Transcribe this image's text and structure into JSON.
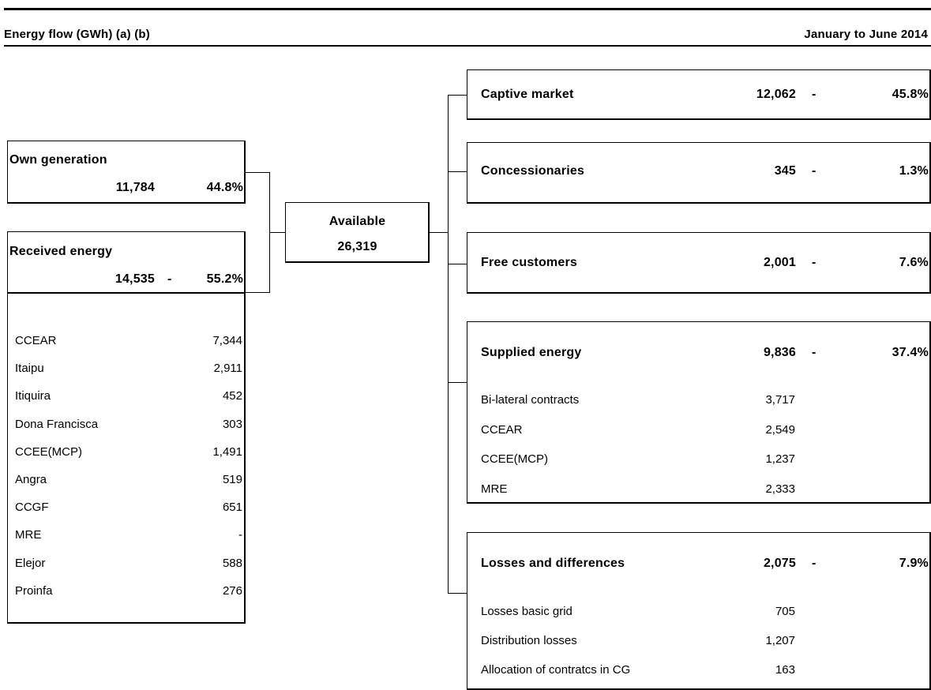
{
  "header": {
    "title": "Energy flow (GWh) (a) (b)",
    "period": "January to June 2014"
  },
  "own_generation": {
    "label": "Own generation",
    "value": "11,784",
    "pct": "44.8%"
  },
  "received_energy": {
    "label": "Received energy",
    "value": "14,535",
    "dash": "-",
    "pct": "55.2%",
    "items": [
      {
        "name": "CCEAR",
        "value": "7,344"
      },
      {
        "name": "Itaipu",
        "value": "2,911"
      },
      {
        "name": "Itiquira",
        "value": "452"
      },
      {
        "name": "Dona Francisca",
        "value": "303"
      },
      {
        "name": "CCEE(MCP)",
        "value": "1,491"
      },
      {
        "name": "Angra",
        "value": "519"
      },
      {
        "name": "CCGF",
        "value": "651"
      },
      {
        "name": "MRE",
        "value": "-"
      },
      {
        "name": "Elejor",
        "value": "588"
      },
      {
        "name": "Proinfa",
        "value": "276"
      }
    ]
  },
  "available": {
    "label": "Available",
    "value": "26,319"
  },
  "captive_market": {
    "label": "Captive market",
    "value": "12,062",
    "dash": "-",
    "pct": "45.8%"
  },
  "concessionaries": {
    "label": "Concessionaries",
    "value": "345",
    "dash": "-",
    "pct": "1.3%"
  },
  "free_customers": {
    "label": "Free customers",
    "value": "2,001",
    "dash": "-",
    "pct": "7.6%"
  },
  "supplied_energy": {
    "label": "Supplied energy",
    "value": "9,836",
    "dash": "-",
    "pct": "37.4%",
    "items": [
      {
        "name": "Bi-lateral contracts",
        "value": "3,717"
      },
      {
        "name": "CCEAR",
        "value": "2,549"
      },
      {
        "name": "CCEE(MCP)",
        "value": "1,237"
      },
      {
        "name": "MRE",
        "value": "2,333"
      }
    ]
  },
  "losses": {
    "label": "Losses and differences",
    "value": "2,075",
    "dash": "-",
    "pct": "7.9%",
    "items": [
      {
        "name": "Losses basic grid",
        "value": "705"
      },
      {
        "name": "Distribution losses",
        "value": "1,207"
      },
      {
        "name": "Allocation of contratcs in CG",
        "value": "163"
      }
    ]
  }
}
